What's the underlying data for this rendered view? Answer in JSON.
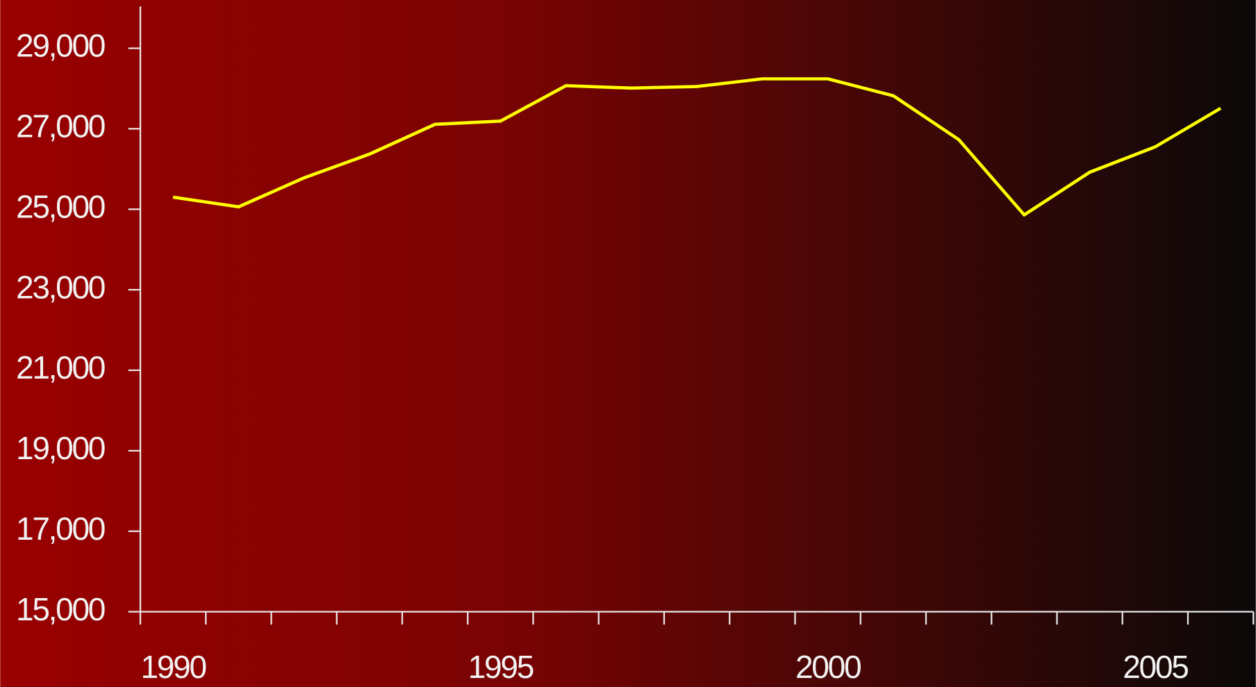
{
  "chart_data": {
    "type": "line",
    "categories": [
      "1990",
      null,
      null,
      null,
      null,
      "1995",
      null,
      null,
      null,
      null,
      "2000",
      null,
      null,
      null,
      null,
      "2005",
      null
    ],
    "series": [
      {
        "color": "#ffff00",
        "values": [
          25300,
          25060,
          25780,
          26370,
          27110,
          27190,
          28070,
          28010,
          28050,
          28240,
          28240,
          27820,
          26730,
          24860,
          25920,
          26550,
          27510
        ]
      }
    ],
    "ylim": [
      15000,
      30000
    ],
    "yticks": [
      {
        "value": 15000,
        "label": "15,000"
      },
      {
        "value": 17000,
        "label": "17,000"
      },
      {
        "value": 19000,
        "label": "19,000"
      },
      {
        "value": 21000,
        "label": "21,000"
      },
      {
        "value": 23000,
        "label": "23,000"
      },
      {
        "value": 25000,
        "label": "25,000"
      },
      {
        "value": 27000,
        "label": "27,000"
      },
      {
        "value": 29000,
        "label": "29,000"
      }
    ]
  }
}
